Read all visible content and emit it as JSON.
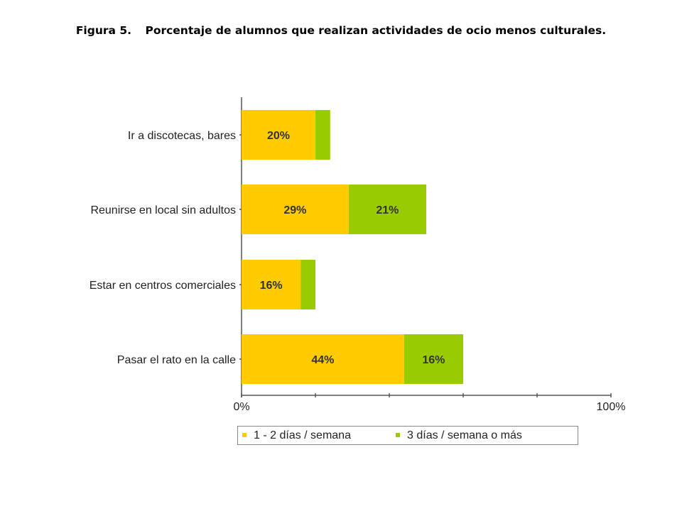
{
  "title": {
    "label": "Figura 5.",
    "text": "Porcentaje de alumnos que realizan actividades de ocio menos culturales."
  },
  "chart_data": {
    "type": "bar",
    "orientation": "horizontal",
    "stacked": true,
    "categories": [
      "Ir a discotecas, bares",
      "Reunirse en local sin adultos",
      "Estar en centros comerciales",
      "Pasar el rato en la calle"
    ],
    "series": [
      {
        "name": "1 - 2 días / semana",
        "color": "#FFCC00",
        "values": [
          20,
          29,
          16,
          44
        ],
        "labels": [
          "20%",
          "29%",
          "16%",
          "44%"
        ]
      },
      {
        "name": "3 días / semana o más",
        "color": "#99CC00",
        "values": [
          4,
          21,
          4,
          16
        ],
        "labels": [
          "",
          "21%",
          "",
          "16%"
        ]
      }
    ],
    "xlim": [
      0,
      100
    ],
    "x_tick_labels": [
      "0%",
      "100%"
    ],
    "grid": false,
    "legend_position": "bottom"
  }
}
